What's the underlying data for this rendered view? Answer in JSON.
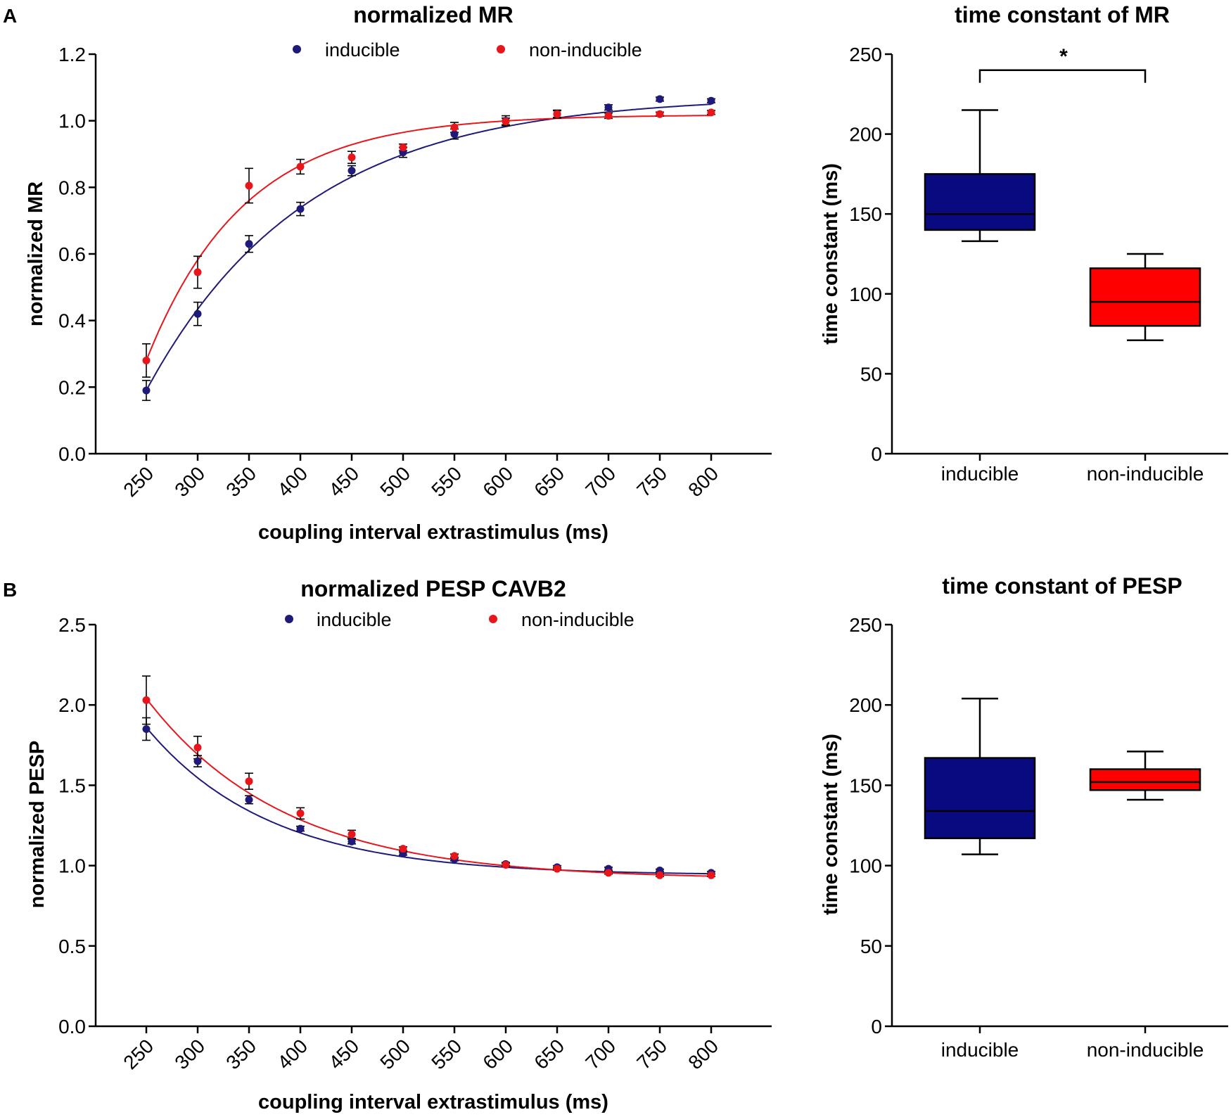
{
  "chart_data": [
    {
      "id": "A-line",
      "panel": "A",
      "type": "scatter",
      "title": "normalized MR",
      "xlabel": "coupling interval extrastimulus (ms)",
      "ylabel": "normalized MR",
      "ylim": [
        0,
        1.2
      ],
      "yticks": [
        "0.0",
        "0.2",
        "0.4",
        "0.6",
        "0.8",
        "1.0",
        "1.2"
      ],
      "x": [
        250,
        300,
        350,
        400,
        450,
        500,
        550,
        600,
        650,
        700,
        750,
        800
      ],
      "xticks": [
        "250",
        "300",
        "350",
        "400",
        "450",
        "500",
        "550",
        "600",
        "650",
        "700",
        "750",
        "800"
      ],
      "legend_position": "top",
      "series": [
        {
          "name": "inducible",
          "color": "#1f1a7a",
          "values": [
            0.19,
            0.42,
            0.63,
            0.735,
            0.85,
            0.905,
            0.96,
            1.0,
            1.02,
            1.04,
            1.065,
            1.06
          ],
          "err": [
            0.03,
            0.035,
            0.025,
            0.02,
            0.015,
            0.015,
            0.015,
            0.015,
            0.012,
            0.008,
            0.006,
            0.006
          ],
          "fit": {
            "plateau": 1.075,
            "y0": 0.19,
            "tau": 155
          }
        },
        {
          "name": "non-inducible",
          "color": "#e8161b",
          "values": [
            0.28,
            0.545,
            0.805,
            0.862,
            0.89,
            0.92,
            0.98,
            0.998,
            1.02,
            1.015,
            1.02,
            1.025
          ],
          "err": [
            0.05,
            0.048,
            0.052,
            0.022,
            0.018,
            0.01,
            0.015,
            0.01,
            0.01,
            0.008,
            0.006,
            0.006
          ],
          "fit": {
            "plateau": 1.018,
            "y0": 0.28,
            "tau": 95
          }
        }
      ]
    },
    {
      "id": "A-box",
      "panel": "A",
      "type": "box",
      "title": "time constant of MR",
      "ylabel": "time constant (ms)",
      "ylim": [
        0,
        250
      ],
      "yticks": [
        "0",
        "50",
        "100",
        "150",
        "200",
        "250"
      ],
      "categories": [
        "inducible",
        "non-inducible"
      ],
      "boxes": [
        {
          "name": "inducible",
          "color": "#0a0a80",
          "min": 133,
          "q1": 140,
          "median": 150,
          "q3": 175,
          "max": 215
        },
        {
          "name": "non-inducible",
          "color": "#ff0000",
          "min": 71,
          "q1": 80,
          "median": 95,
          "q3": 116,
          "max": 125
        }
      ],
      "significance": {
        "label": "*",
        "level": 240
      }
    },
    {
      "id": "B-line",
      "panel": "B",
      "type": "scatter",
      "title": "normalized PESP CAVB2",
      "xlabel": "coupling interval extrastimulus (ms)",
      "ylabel": "normalized PESP",
      "ylim": [
        0,
        2.5
      ],
      "yticks": [
        "0.0",
        "0.5",
        "1.0",
        "1.5",
        "2.0",
        "2.5"
      ],
      "x": [
        250,
        300,
        350,
        400,
        450,
        500,
        550,
        600,
        650,
        700,
        750,
        800
      ],
      "xticks": [
        "250",
        "300",
        "350",
        "400",
        "450",
        "500",
        "550",
        "600",
        "650",
        "700",
        "750",
        "800"
      ],
      "legend_position": "top",
      "series": [
        {
          "name": "inducible",
          "color": "#1f1a7a",
          "values": [
            1.85,
            1.65,
            1.41,
            1.23,
            1.15,
            1.075,
            1.04,
            1.01,
            0.99,
            0.98,
            0.97,
            0.955
          ],
          "err": [
            0.07,
            0.035,
            0.025,
            0.015,
            0.015,
            0.01,
            0.01,
            0.01,
            0.01,
            0.01,
            0.008,
            0.008
          ],
          "fit": {
            "plateau": 0.94,
            "y0": 1.86,
            "tau": 120
          }
        },
        {
          "name": "non-inducible",
          "color": "#e8161b",
          "values": [
            2.03,
            1.735,
            1.525,
            1.325,
            1.195,
            1.105,
            1.06,
            1.005,
            0.98,
            0.955,
            0.94,
            0.94
          ],
          "err": [
            0.15,
            0.07,
            0.05,
            0.035,
            0.025,
            0.012,
            0.012,
            0.01,
            0.008,
            0.008,
            0.008,
            0.008
          ],
          "fit": {
            "plateau": 0.915,
            "y0": 2.04,
            "tau": 135
          }
        }
      ]
    },
    {
      "id": "B-box",
      "panel": "B",
      "type": "box",
      "title": "time constant of PESP",
      "ylabel": "time constant (ms)",
      "ylim": [
        0,
        250
      ],
      "yticks": [
        "0",
        "50",
        "100",
        "150",
        "200",
        "250"
      ],
      "categories": [
        "inducible",
        "non-inducible"
      ],
      "boxes": [
        {
          "name": "inducible",
          "color": "#0a0a80",
          "min": 107,
          "q1": 117,
          "median": 134,
          "q3": 167,
          "max": 204
        },
        {
          "name": "non-inducible",
          "color": "#ff0000",
          "min": 141,
          "q1": 147,
          "median": 152,
          "q3": 160,
          "max": 171
        }
      ]
    }
  ],
  "panel_labels": {
    "A": "A",
    "B": "B"
  }
}
